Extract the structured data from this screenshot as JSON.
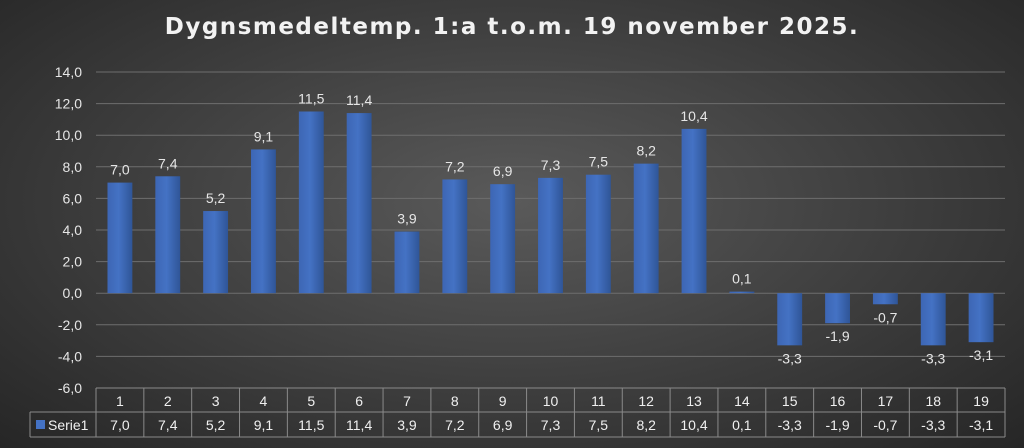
{
  "chart_data": {
    "type": "bar",
    "title": "Dygnsmedeltemp. 1:a t.o.m. 19 november 2025.",
    "categories": [
      "1",
      "2",
      "3",
      "4",
      "5",
      "6",
      "7",
      "8",
      "9",
      "10",
      "11",
      "12",
      "13",
      "14",
      "15",
      "16",
      "17",
      "18",
      "19"
    ],
    "series": [
      {
        "name": "Serie1",
        "values": [
          7.0,
          7.4,
          5.2,
          9.1,
          11.5,
          11.4,
          3.9,
          7.2,
          6.9,
          7.3,
          7.5,
          8.2,
          10.4,
          0.1,
          -3.3,
          -1.9,
          -0.7,
          -3.3,
          -3.1
        ],
        "labels": [
          "7,0",
          "7,4",
          "5,2",
          "9,1",
          "11,5",
          "11,4",
          "3,9",
          "7,2",
          "6,9",
          "7,3",
          "7,5",
          "8,2",
          "10,4",
          "0,1",
          "-3,3",
          "-1,9",
          "-0,7",
          "-3,3",
          "-3,1"
        ],
        "color": "#4472c4"
      }
    ],
    "ylim": [
      -6,
      14
    ],
    "yticks": [
      14,
      12,
      10,
      8,
      6,
      4,
      2,
      0,
      -2,
      -4,
      -6
    ],
    "ytick_labels": [
      "14,0",
      "12,0",
      "10,0",
      "8,0",
      "6,0",
      "4,0",
      "2,0",
      "0,0",
      "-2,0",
      "-4,0",
      "-6,0"
    ],
    "grid": true,
    "data_table": true,
    "legend": "data-table-left"
  }
}
